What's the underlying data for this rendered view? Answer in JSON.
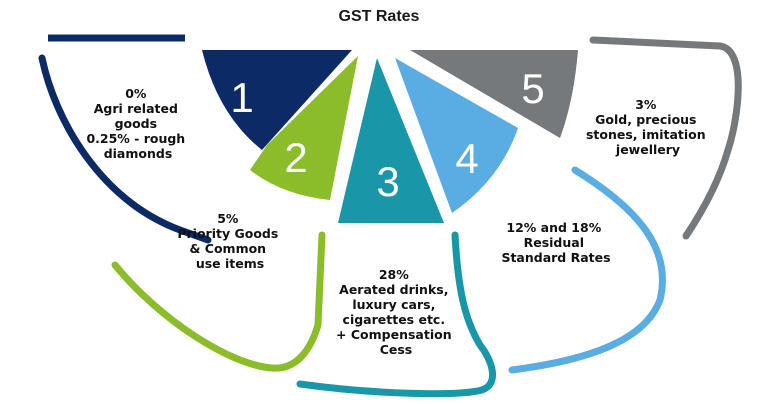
{
  "title": "GST Rates",
  "segments": [
    {
      "number": "1",
      "color": "#0b2a66",
      "lines": [
        "0%",
        "Agri related",
        "goods",
        "0.25% - rough",
        "diamonds"
      ]
    },
    {
      "number": "2",
      "color": "#8bbd2a",
      "lines": [
        "5%",
        "Priority Goods",
        "& Common",
        "use items"
      ]
    },
    {
      "number": "3",
      "color": "#1997a8",
      "lines": [
        "28%",
        "Aerated drinks,",
        "luxury cars,",
        "cigarettes etc.",
        "+  Compensation",
        "Cess"
      ]
    },
    {
      "number": "4",
      "color": "#5aade3",
      "lines": [
        "12% and 18%",
        "Residual",
        "Standard Rates"
      ]
    },
    {
      "number": "5",
      "color": "#76797c",
      "lines": [
        "3%",
        "Gold, precious",
        "stones, imitation",
        "jewellery"
      ]
    }
  ]
}
